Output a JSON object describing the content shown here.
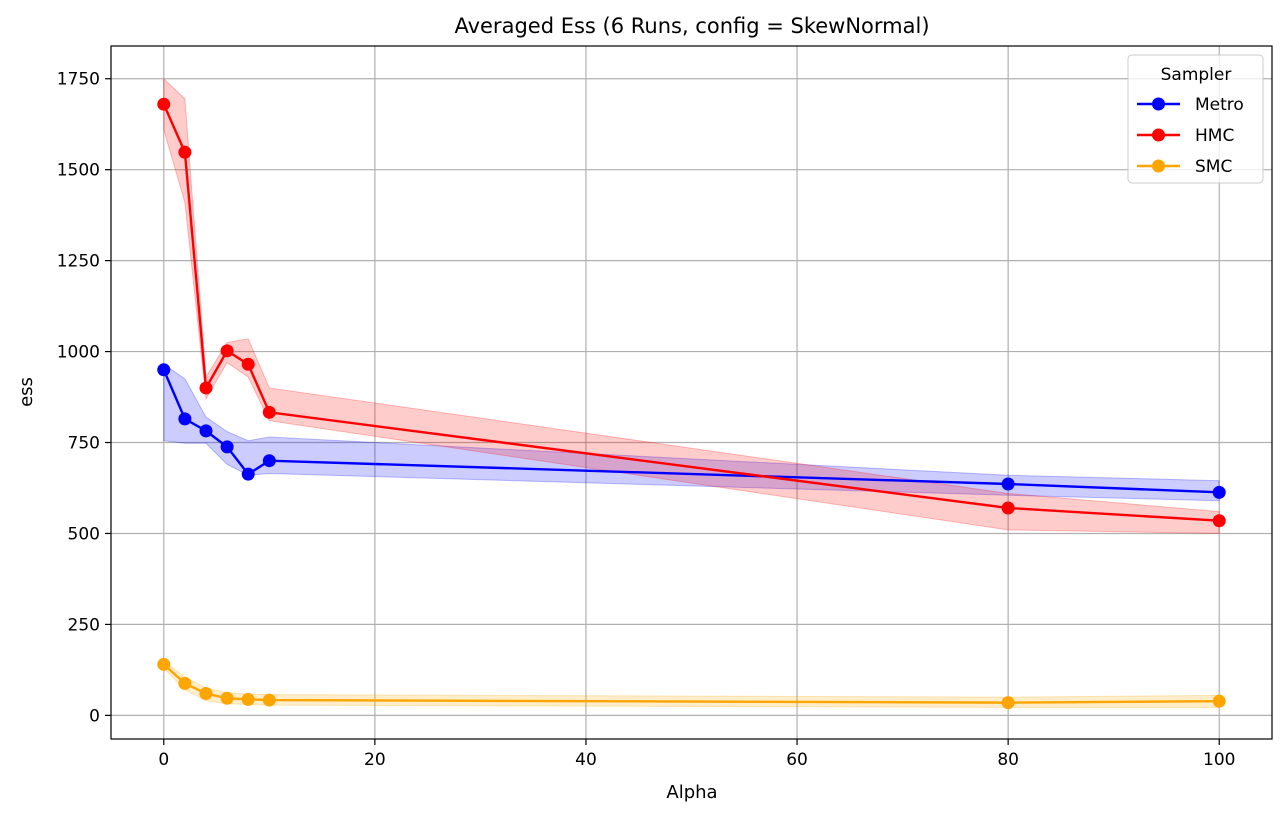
{
  "chart_data": {
    "type": "line",
    "title": "Averaged Ess (6 Runs, config = SkewNormal)",
    "xlabel": "Alpha",
    "ylabel": "ess",
    "xlim": [
      -5,
      105
    ],
    "ylim": [
      -65,
      1840
    ],
    "xticks": [
      0,
      20,
      40,
      60,
      80,
      100
    ],
    "yticks": [
      0,
      250,
      500,
      750,
      1000,
      1250,
      1500,
      1750
    ],
    "grid": true,
    "legend": {
      "title": "Sampler",
      "placement": "top-right"
    },
    "x": [
      0,
      2,
      4,
      6,
      8,
      10,
      80,
      100
    ],
    "series": [
      {
        "name": "Metro",
        "color": "#0000ff",
        "values": [
          950,
          815,
          782,
          738,
          663,
          700,
          636,
          613
        ],
        "band_low": [
          755,
          748,
          748,
          690,
          660,
          665,
          605,
          590
        ],
        "band_high": [
          965,
          925,
          820,
          780,
          755,
          765,
          660,
          645
        ]
      },
      {
        "name": "HMC",
        "color": "#ff0000",
        "values": [
          1680,
          1548,
          900,
          1002,
          965,
          833,
          570,
          535
        ],
        "band_low": [
          1610,
          1410,
          870,
          970,
          930,
          810,
          510,
          500
        ],
        "band_high": [
          1750,
          1695,
          930,
          1025,
          1035,
          900,
          610,
          560
        ]
      },
      {
        "name": "SMC",
        "color": "#ffa500",
        "values": [
          140,
          88,
          60,
          47,
          44,
          42,
          35,
          39
        ],
        "band_low": [
          130,
          70,
          40,
          32,
          30,
          28,
          22,
          22
        ],
        "band_high": [
          150,
          105,
          75,
          62,
          58,
          57,
          50,
          55
        ]
      }
    ]
  }
}
